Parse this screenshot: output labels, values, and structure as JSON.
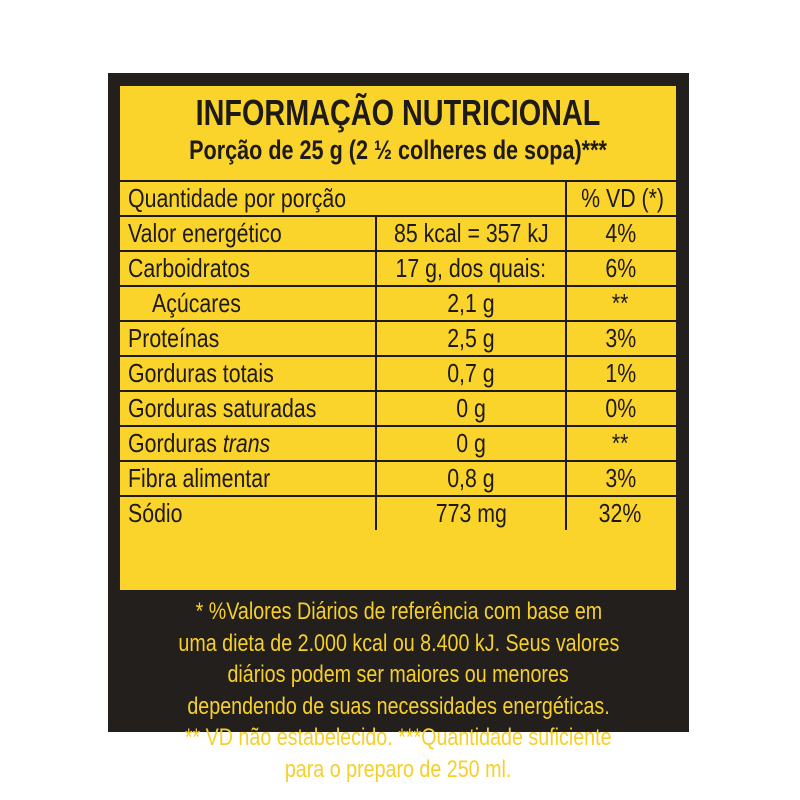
{
  "header": {
    "title": "INFORMAÇÃO NUTRICIONAL",
    "serving": "Porção de  25 g (2 ½ colheres de sopa)***"
  },
  "table": {
    "col_quantity": "Quantidade por porção",
    "col_vd": "% VD (*)",
    "rows": [
      {
        "name": "Valor energético",
        "amount": "85 kcal = 357 kJ",
        "vd": "4%"
      },
      {
        "name": "Carboidratos",
        "amount": "17 g, dos quais:",
        "vd": "6%"
      },
      {
        "name": "Açúcares",
        "amount": "2,1 g",
        "vd": "**"
      },
      {
        "name": "Proteínas",
        "amount": "2,5 g",
        "vd": "3%"
      },
      {
        "name": "Gorduras totais",
        "amount": "0,7 g",
        "vd": "1%"
      },
      {
        "name": "Gorduras saturadas",
        "amount": "0 g",
        "vd": "0%"
      },
      {
        "name": "Gorduras",
        "name_italic": "trans",
        "amount": "0 g",
        "vd": "**"
      },
      {
        "name": "Fibra alimentar",
        "amount": "0,8 g",
        "vd": "3%"
      },
      {
        "name": "Sódio",
        "amount": "773 mg",
        "vd": "32%"
      }
    ]
  },
  "footnote": {
    "lines": [
      "* %Valores Diários de referência com base em",
      "uma dieta de 2.000 kcal ou 8.400 kJ. Seus valores",
      "diários podem ser maiores ou menores",
      "dependendo de suas necessidades energéticas.",
      "** VD não estabelecido. ***Quantidade suficiente",
      "para o preparo de 250 ml."
    ]
  },
  "colors": {
    "panel": "#fbd42b",
    "frame": "#221f1d",
    "footnote_text": "#f7cf2a"
  }
}
